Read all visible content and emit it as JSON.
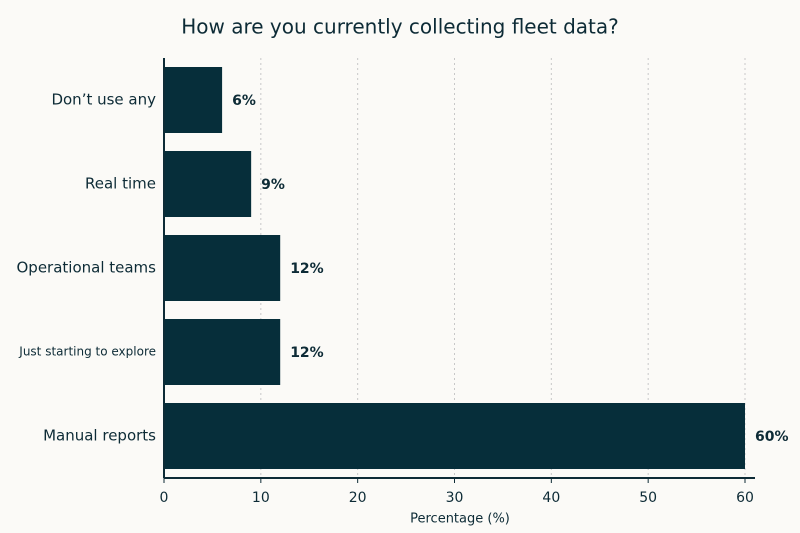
{
  "chart_data": {
    "type": "bar",
    "orientation": "horizontal",
    "title": "How are you currently collecting fleet data?",
    "x_label": "Percentage (%)",
    "categories": [
      "Don’t use any",
      "Real time",
      "Operational teams",
      "Just starting to explore",
      "Manual reports"
    ],
    "values": [
      6,
      9,
      12,
      12,
      60
    ],
    "value_labels": [
      "6%",
      "9%",
      "12%",
      "12%",
      "60%"
    ],
    "color": "#062e3a",
    "xlim": [
      0,
      60
    ],
    "xticks": [
      0,
      10,
      20,
      30,
      40,
      50,
      60
    ],
    "grid": true
  }
}
